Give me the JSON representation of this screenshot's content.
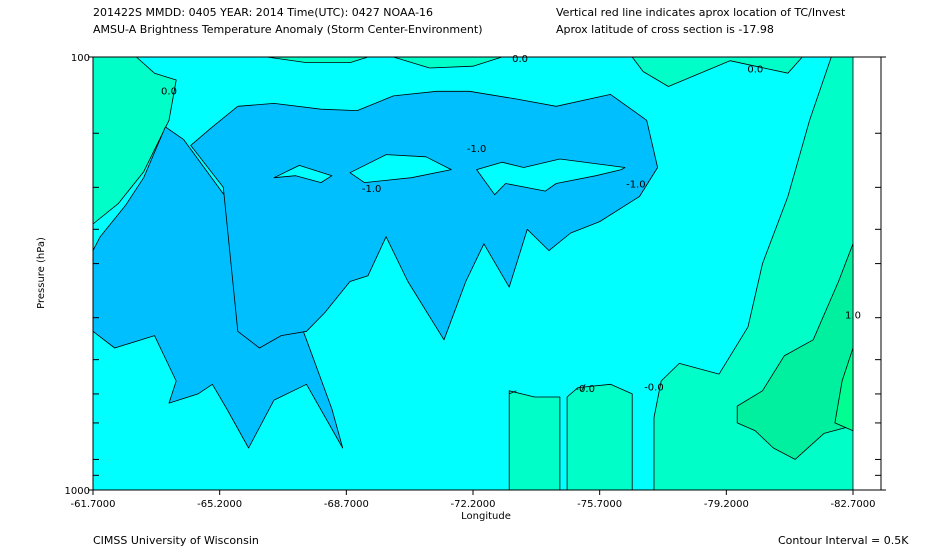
{
  "header": {
    "line1_left": "201422S  MMDD: 0405 YEAR: 2014 Time(UTC): 0427 NOAA-16",
    "line2_left": "AMSU-A Brightness Temperature Anomaly (Storm Center-Environment)",
    "line1_right": "Vertical red line indicates aprox location of TC/Invest",
    "line2_right": "Aprox latitude of cross section is -17.98"
  },
  "footer": {
    "left": "CIMSS University of Wisconsin",
    "right": "Contour Interval = 0.5K"
  },
  "colors": {
    "minus1_5": "#00bfff",
    "minus0_5": "#00ffff",
    "plus0_5": "#00ffc8",
    "plus1_0": "#00f0a0",
    "plus1_5": "#00ff90",
    "line": "#000000"
  },
  "chart_data": {
    "type": "heatmap",
    "title": "AMSU-A Brightness Temperature Anomaly (Storm Center-Environment)",
    "xlabel": "Longitude",
    "ylabel": "Pressure (hPa)",
    "x_ticks": [
      "-61.7000",
      "-65.2000",
      "-68.7000",
      "-72.2000",
      "-75.7000",
      "-79.2000",
      "-82.7000"
    ],
    "x_tick_values": [
      -61.7,
      -65.2,
      -68.7,
      -72.2,
      -75.7,
      -79.2,
      -82.7
    ],
    "xlim": [
      -61.7,
      -82.7
    ],
    "y_ticks": [
      "100",
      "1000"
    ],
    "ylim": [
      100,
      1000
    ],
    "y_scale": "log",
    "y_minor_ticks": [
      150,
      200,
      250,
      300,
      400,
      500,
      600,
      700,
      850,
      925
    ],
    "contour_interval": 0.5,
    "contour_labels": [
      {
        "text": "0.0",
        "lon": -63.8,
        "p": 120
      },
      {
        "text": "0.0",
        "lon": -73.5,
        "p": 101
      },
      {
        "text": "0.0",
        "lon": -80.0,
        "p": 107
      },
      {
        "text": "-1.0",
        "lon": -72.3,
        "p": 163
      },
      {
        "text": "-1.0",
        "lon": -69.4,
        "p": 202
      },
      {
        "text": "-1.0",
        "lon": -76.7,
        "p": 197
      },
      {
        "text": "-0.0",
        "lon": -75.3,
        "p": 585
      },
      {
        "text": "-0.0",
        "lon": -77.2,
        "p": 580
      },
      {
        "text": "1.0",
        "lon": -82.7,
        "p": 395
      }
    ],
    "regions": [
      {
        "level": "0.5",
        "points": [
          [
            -61.7,
            100
          ],
          [
            -62.9,
            100
          ],
          [
            -63.4,
            109
          ],
          [
            -64.0,
            113
          ],
          [
            -63.8,
            140
          ],
          [
            -63.1,
            184
          ],
          [
            -62.4,
            218
          ],
          [
            -61.7,
            243
          ]
        ]
      },
      {
        "level": "0.5",
        "points": [
          [
            -65.2,
            100
          ],
          [
            -66.5,
            100
          ],
          [
            -67.6,
            103
          ],
          [
            -68.8,
            103
          ],
          [
            -69.3,
            100
          ]
        ]
      },
      {
        "level": "0.5",
        "points": [
          [
            -70.0,
            100
          ],
          [
            -71.0,
            106
          ],
          [
            -72.2,
            105
          ],
          [
            -73.0,
            100
          ]
        ]
      },
      {
        "level": "0.5",
        "points": [
          [
            -76.6,
            100
          ],
          [
            -76.9,
            108
          ],
          [
            -77.6,
            117
          ],
          [
            -79.3,
            102
          ],
          [
            -80.9,
            109
          ],
          [
            -81.3,
            100
          ]
        ]
      },
      {
        "level": "0.5",
        "points": [
          [
            -82.1,
            100
          ],
          [
            -81.5,
            140
          ],
          [
            -80.9,
            210
          ],
          [
            -80.2,
            300
          ],
          [
            -79.8,
            420
          ],
          [
            -79.0,
            540
          ],
          [
            -77.9,
            510
          ],
          [
            -77.4,
            560
          ],
          [
            -77.2,
            680
          ],
          [
            -77.2,
            1000
          ],
          [
            -82.7,
            1000
          ],
          [
            -82.7,
            100
          ]
        ]
      },
      {
        "level": "0.5",
        "points": [
          [
            -76.6,
            1000
          ],
          [
            -76.6,
            600
          ],
          [
            -76.0,
            570
          ],
          [
            -75.1,
            580
          ],
          [
            -74.8,
            610
          ],
          [
            -74.8,
            1000
          ]
        ]
      },
      {
        "level": "0.5",
        "points": [
          [
            -74.6,
            1000
          ],
          [
            -74.6,
            610
          ],
          [
            -73.9,
            610
          ],
          [
            -73.2,
            590
          ],
          [
            -73.2,
            1000
          ]
        ]
      },
      {
        "level": "1.0",
        "points": [
          [
            -82.7,
            270
          ],
          [
            -82.3,
            330
          ],
          [
            -81.6,
            450
          ],
          [
            -80.8,
            490
          ],
          [
            -80.2,
            590
          ],
          [
            -79.5,
            640
          ],
          [
            -79.5,
            700
          ],
          [
            -80.0,
            730
          ],
          [
            -80.5,
            800
          ],
          [
            -81.1,
            850
          ],
          [
            -81.9,
            740
          ],
          [
            -82.7,
            710
          ]
        ]
      },
      {
        "level": "1.5",
        "points": [
          [
            -82.7,
            470
          ],
          [
            -82.4,
            560
          ],
          [
            -82.2,
            700
          ],
          [
            -82.7,
            730
          ]
        ]
      },
      {
        "level": "-1.5",
        "points": [
          [
            -61.7,
            430
          ],
          [
            -62.3,
            470
          ],
          [
            -63.4,
            440
          ],
          [
            -64.0,
            560
          ],
          [
            -63.8,
            630
          ],
          [
            -64.6,
            600
          ],
          [
            -65.0,
            570
          ],
          [
            -65.4,
            650
          ],
          [
            -66.0,
            800
          ],
          [
            -66.7,
            620
          ],
          [
            -67.6,
            570
          ],
          [
            -68.6,
            800
          ],
          [
            -68.3,
            650
          ],
          [
            -67.6,
            450
          ],
          [
            -67.1,
            350
          ],
          [
            -66.3,
            285
          ],
          [
            -65.7,
            230
          ],
          [
            -64.2,
            155
          ],
          [
            -63.7,
            145
          ],
          [
            -63.1,
            190
          ],
          [
            -62.6,
            220
          ],
          [
            -61.9,
            260
          ],
          [
            -61.7,
            280
          ]
        ]
      },
      {
        "level": "-1.5",
        "points": [
          [
            -64.4,
            160
          ],
          [
            -65.0,
            145
          ],
          [
            -65.7,
            130
          ],
          [
            -66.7,
            128
          ],
          [
            -68.0,
            132
          ],
          [
            -69.0,
            133
          ],
          [
            -70.0,
            123
          ],
          [
            -71.2,
            120
          ],
          [
            -72.1,
            120
          ],
          [
            -73.4,
            125
          ],
          [
            -74.5,
            130
          ],
          [
            -76.0,
            122
          ],
          [
            -77.0,
            140
          ],
          [
            -77.3,
            180
          ],
          [
            -76.8,
            210
          ],
          [
            -75.7,
            240
          ],
          [
            -74.9,
            255
          ],
          [
            -74.3,
            280
          ],
          [
            -73.7,
            250
          ],
          [
            -73.2,
            340
          ],
          [
            -72.5,
            270
          ],
          [
            -72.0,
            330
          ],
          [
            -71.4,
            450
          ],
          [
            -70.4,
            330
          ],
          [
            -69.8,
            260
          ],
          [
            -69.3,
            320
          ],
          [
            -68.8,
            330
          ],
          [
            -68.1,
            390
          ],
          [
            -67.6,
            430
          ],
          [
            -66.9,
            440
          ],
          [
            -66.3,
            470
          ],
          [
            -65.7,
            430
          ],
          [
            -65.3,
            200
          ]
        ]
      },
      {
        "level": "-0.5",
        "points": [
          [
            -66.7,
            190
          ],
          [
            -67.4,
            178
          ],
          [
            -68.3,
            188
          ],
          [
            -68.0,
            195
          ],
          [
            -67.3,
            188
          ]
        ]
      },
      {
        "level": "-0.5",
        "points": [
          [
            -68.8,
            185
          ],
          [
            -69.8,
            168
          ],
          [
            -70.9,
            170
          ],
          [
            -71.6,
            182
          ],
          [
            -70.5,
            190
          ],
          [
            -69.2,
            195
          ]
        ]
      },
      {
        "level": "-0.5",
        "points": [
          [
            -72.3,
            182
          ],
          [
            -73.0,
            175
          ],
          [
            -73.6,
            180
          ],
          [
            -74.6,
            172
          ],
          [
            -76.4,
            180
          ],
          [
            -76.3,
            182
          ],
          [
            -75.6,
            188
          ],
          [
            -74.5,
            196
          ],
          [
            -74.2,
            204
          ],
          [
            -73.1,
            196
          ],
          [
            -72.8,
            208
          ]
        ]
      }
    ],
    "contour_lines": [
      [
        [
          -73.2,
          600
        ],
        [
          -73.4,
          590
        ]
      ],
      [
        [
          -75.2,
          590
        ],
        [
          -75.3,
          570
        ]
      ]
    ]
  }
}
